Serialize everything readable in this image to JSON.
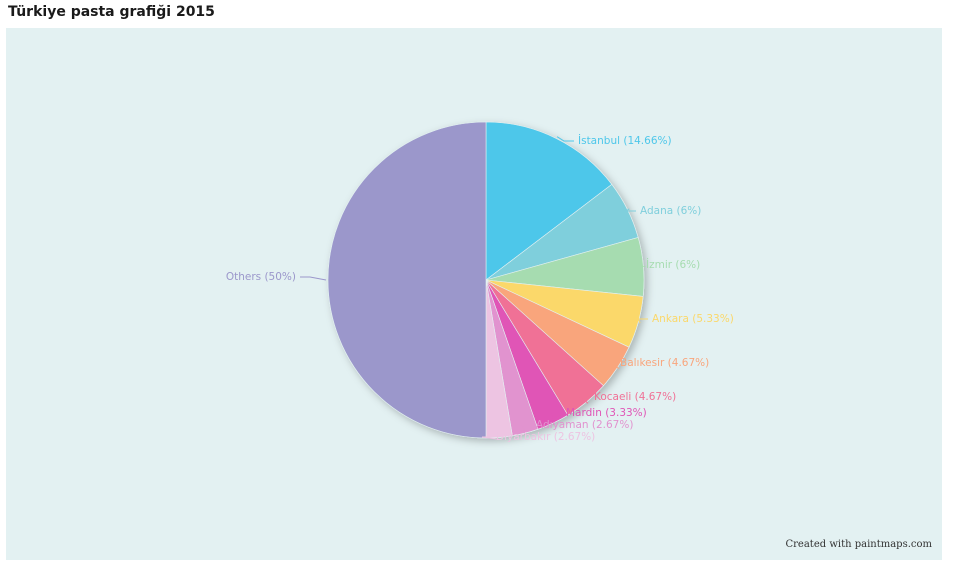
{
  "title": "Türkiye pasta grafiği 2015",
  "credit": "Created with paintmaps.com",
  "chart_data": {
    "type": "pie",
    "title": "Türkiye pasta grafiği 2015",
    "slices": [
      {
        "label": "İstanbul (14.66%)",
        "name": "İstanbul",
        "value": 14.66,
        "color": "#4ec7ea"
      },
      {
        "label": "Adana (6%)",
        "name": "Adana",
        "value": 6,
        "color": "#7fcfdc"
      },
      {
        "label": "İzmir (6%)",
        "name": "İzmir",
        "value": 6,
        "color": "#a6dcb0"
      },
      {
        "label": "Ankara (5.33%)",
        "name": "Ankara",
        "value": 5.33,
        "color": "#fbd86a"
      },
      {
        "label": "Balıkesir (4.67%)",
        "name": "Balıkesir",
        "value": 4.67,
        "color": "#f9a57c"
      },
      {
        "label": "Kocaeli (4.67%)",
        "name": "Kocaeli",
        "value": 4.67,
        "color": "#f07196"
      },
      {
        "label": "Mardin (3.33%)",
        "name": "Mardin",
        "value": 3.33,
        "color": "#e055b6"
      },
      {
        "label": "Adıyaman (2.67%)",
        "name": "Adıyaman",
        "value": 2.67,
        "color": "#e193cf"
      },
      {
        "label": "Diyarbakır (2.67%)",
        "name": "Diyarbakır",
        "value": 2.67,
        "color": "#edc4e2"
      },
      {
        "label": "Others (50%)",
        "name": "Others",
        "value": 50,
        "color": "#9b97cb"
      }
    ]
  }
}
